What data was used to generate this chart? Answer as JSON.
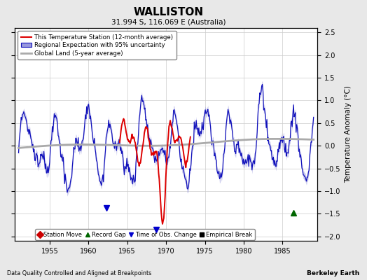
{
  "title": "WALLISTON",
  "subtitle": "31.994 S, 116.069 E (Australia)",
  "ylabel": "Temperature Anomaly (°C)",
  "xlabel_left": "Data Quality Controlled and Aligned at Breakpoints",
  "xlabel_right": "Berkeley Earth",
  "ylim": [
    -2.1,
    2.6
  ],
  "xlim": [
    1950.5,
    1989.5
  ],
  "yticks": [
    -2,
    -1.5,
    -1,
    -0.5,
    0,
    0.5,
    1,
    1.5,
    2,
    2.5
  ],
  "xticks": [
    1955,
    1960,
    1965,
    1970,
    1975,
    1980,
    1985
  ],
  "bg_color": "#e8e8e8",
  "plot_bg_color": "#ffffff",
  "grid_color": "#cccccc",
  "blue_line_color": "#1111bb",
  "blue_fill_color": "#9999dd",
  "red_line_color": "#dd0000",
  "gray_line_color": "#aaaaaa",
  "obs_change_x1": 1962.3,
  "obs_change_y1": -1.38,
  "obs_change_x2": 1968.7,
  "obs_change_y2": -1.85,
  "record_gap_x": 1986.4,
  "record_gap_y": -1.48,
  "marker_items": [
    {
      "label": "Station Move",
      "color": "#cc0000",
      "marker": "D"
    },
    {
      "label": "Record Gap",
      "color": "#006600",
      "marker": "^"
    },
    {
      "label": "Time of Obs. Change",
      "color": "#0000cc",
      "marker": "v"
    },
    {
      "label": "Empirical Break",
      "color": "#000000",
      "marker": "s"
    }
  ]
}
